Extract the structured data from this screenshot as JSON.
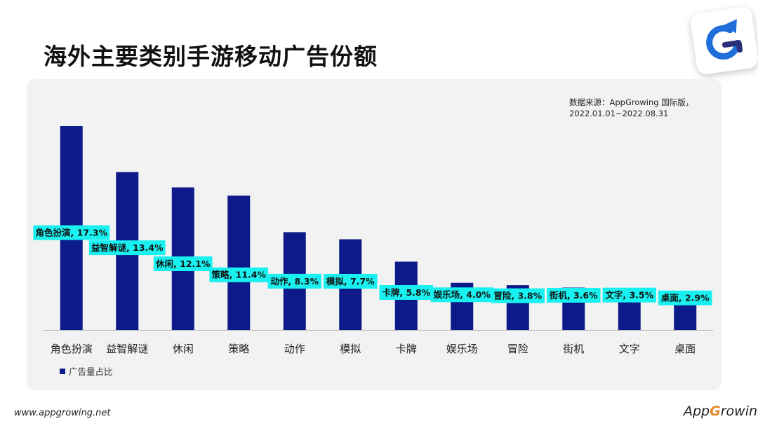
{
  "page": {
    "title": "海外主要类别手游移动广告份额",
    "source_line1": "数据来源：AppGrowing 国际版，",
    "source_line2": "2022.01.01~2022.08.31",
    "footer_url": "www.appgrowing.net",
    "brand_prefix": "App",
    "brand_g": "G",
    "brand_suffix": "rowing"
  },
  "colors": {
    "bar": "#0d1a8a",
    "label_bg": "#19f0f0",
    "axis": "#bbbbbb"
  },
  "chart_data": {
    "type": "bar",
    "categories": [
      "角色扮演",
      "益智解谜",
      "休闲",
      "策略",
      "动作",
      "模拟",
      "卡牌",
      "娱乐场",
      "冒险",
      "街机",
      "文字",
      "桌面"
    ],
    "series": [
      {
        "name": "广告量占比",
        "values": [
          17.3,
          13.4,
          12.1,
          11.4,
          8.3,
          7.7,
          5.8,
          4.0,
          3.8,
          3.6,
          3.5,
          2.9
        ]
      }
    ],
    "data_labels": [
      "角色扮演, 17.3%",
      "益智解谜, 13.4%",
      "休闲, 12.1%",
      "策略, 11.4%",
      "动作, 8.3%",
      "模拟, 7.7%",
      "卡牌, 5.8%",
      "娱乐场, 4.0%",
      "冒险, 3.8%",
      "街机, 3.6%",
      "文字, 3.5%",
      "桌面, 2.9%"
    ],
    "legend_position": "bottom-left",
    "grid": false
  }
}
